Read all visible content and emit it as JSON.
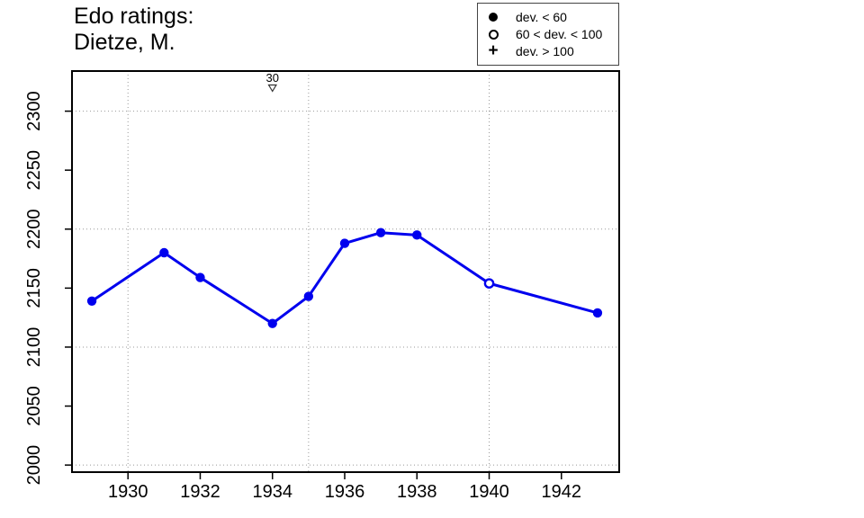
{
  "title": {
    "line1": "Edo ratings:",
    "line2": "Dietze, M."
  },
  "legend": {
    "position": "top-right",
    "items": [
      {
        "symbol": "filled-circle",
        "label": "dev. < 60"
      },
      {
        "symbol": "open-circle",
        "label": "60 < dev. < 100"
      },
      {
        "symbol": "plus",
        "label": "dev. > 100"
      }
    ]
  },
  "colors": {
    "line": "#0000EE",
    "grid": "#999999",
    "axis": "#000000",
    "annotation_outline": "#333333",
    "background": "#ffffff"
  },
  "chart_data": {
    "type": "line",
    "title": "Edo ratings: Dietze, M.",
    "xlabel": "",
    "ylabel": "",
    "x_ticks": [
      1930,
      1932,
      1934,
      1936,
      1938,
      1940,
      1942
    ],
    "x_tick_labels": [
      "1930",
      "1932",
      "1934",
      "1936",
      "1938",
      "1940",
      "1942"
    ],
    "y_ticks": [
      2000,
      2050,
      2100,
      2150,
      2200,
      2250,
      2300
    ],
    "y_tick_labels": [
      "2000",
      "2050",
      "2100",
      "2150",
      "2200",
      "2250",
      "2300"
    ],
    "x_gridlines": [
      1930,
      1935,
      1940
    ],
    "y_gridlines": [
      2000,
      2100,
      2200,
      2300
    ],
    "x_range": [
      1928.45,
      1943.6
    ],
    "y_range": [
      1994,
      2334
    ],
    "grid": "dotted",
    "legend_position": "top-right",
    "series": [
      {
        "name": "Dietze, M.",
        "points": [
          {
            "year": 1929,
            "rating": 2139,
            "marker": "filled",
            "dev_class": "dev. < 60"
          },
          {
            "year": 1931,
            "rating": 2180,
            "marker": "filled",
            "dev_class": "dev. < 60"
          },
          {
            "year": 1932,
            "rating": 2159,
            "marker": "filled",
            "dev_class": "dev. < 60"
          },
          {
            "year": 1934,
            "rating": 2120,
            "marker": "filled",
            "dev_class": "dev. < 60"
          },
          {
            "year": 1935,
            "rating": 2143,
            "marker": "filled",
            "dev_class": "dev. < 60"
          },
          {
            "year": 1936,
            "rating": 2188,
            "marker": "filled",
            "dev_class": "dev. < 60"
          },
          {
            "year": 1937,
            "rating": 2197,
            "marker": "filled",
            "dev_class": "dev. < 60"
          },
          {
            "year": 1938,
            "rating": 2195,
            "marker": "filled",
            "dev_class": "dev. < 60"
          },
          {
            "year": 1940,
            "rating": 2154,
            "marker": "open",
            "dev_class": "60 < dev. < 100"
          },
          {
            "year": 1943,
            "rating": 2129,
            "marker": "filled",
            "dev_class": "dev. < 60"
          }
        ]
      }
    ],
    "annotations": [
      {
        "year": 1934,
        "label": "30",
        "marker": "open-down-triangle"
      }
    ]
  }
}
